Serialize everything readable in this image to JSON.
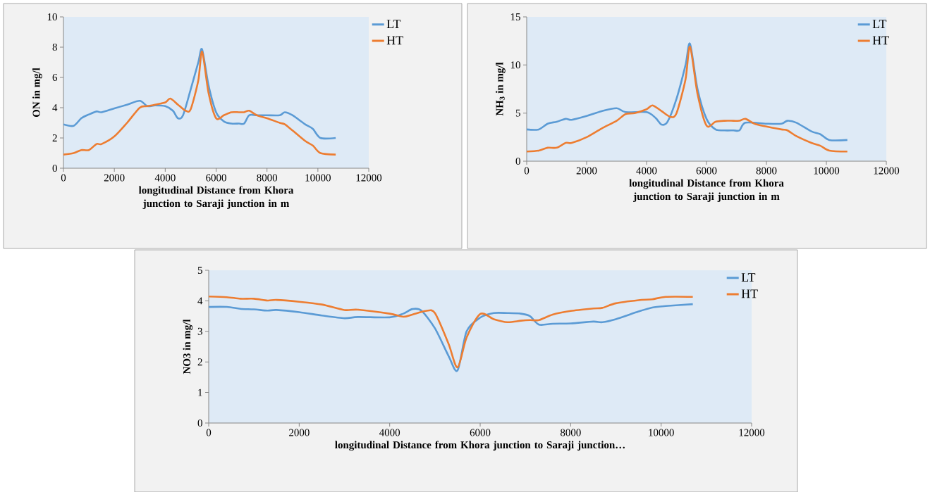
{
  "chart_data": [
    {
      "type": "line",
      "xlabel": "longitudinal Distance from Khora junction to Saraji junction in m",
      "ylabel": "ON in mg/l",
      "xlim": [
        0,
        12000
      ],
      "ylim": [
        0,
        10
      ],
      "xticks": [
        0,
        2000,
        4000,
        6000,
        8000,
        10000,
        12000
      ],
      "yticks": [
        0,
        2,
        4,
        6,
        8,
        10
      ],
      "legend": "top right",
      "series": [
        {
          "name": "LT",
          "color": "#5b9bd5",
          "x": [
            0,
            400,
            700,
            1000,
            1300,
            1500,
            2000,
            2500,
            3000,
            3300,
            3600,
            4000,
            4300,
            4500,
            4700,
            5000,
            5300,
            5450,
            5700,
            6000,
            6300,
            6600,
            6900,
            7100,
            7300,
            7600,
            8000,
            8500,
            8700,
            9000,
            9500,
            9800,
            10100,
            10700
          ],
          "values": [
            2.9,
            2.8,
            3.3,
            3.55,
            3.75,
            3.7,
            3.95,
            4.2,
            4.45,
            4.1,
            4.15,
            4.1,
            3.8,
            3.3,
            3.5,
            5.2,
            7.0,
            7.85,
            5.5,
            3.7,
            3.1,
            2.95,
            2.95,
            2.95,
            3.5,
            3.5,
            3.5,
            3.5,
            3.7,
            3.5,
            2.9,
            2.6,
            2.0,
            2.0
          ]
        },
        {
          "name": "HT",
          "color": "#ed7d31",
          "x": [
            0,
            400,
            700,
            1000,
            1300,
            1500,
            2000,
            2500,
            3000,
            3300,
            3600,
            4000,
            4200,
            4500,
            4800,
            5000,
            5300,
            5450,
            5700,
            6000,
            6300,
            6600,
            6900,
            7100,
            7300,
            7600,
            8000,
            8500,
            8700,
            9000,
            9500,
            9800,
            10100,
            10700
          ],
          "values": [
            0.9,
            1.0,
            1.2,
            1.2,
            1.6,
            1.6,
            2.1,
            3.0,
            4.0,
            4.1,
            4.2,
            4.35,
            4.6,
            4.2,
            3.8,
            3.9,
            5.8,
            7.7,
            5.0,
            3.3,
            3.5,
            3.7,
            3.7,
            3.7,
            3.8,
            3.5,
            3.3,
            3.0,
            2.9,
            2.5,
            1.8,
            1.5,
            1.0,
            0.9
          ]
        }
      ]
    },
    {
      "type": "line",
      "xlabel": "longitudinal Distance from Khora junction to Saraji junction in m",
      "ylabel": "NH$_{3}$ in mg/l",
      "xlim": [
        0,
        12000
      ],
      "ylim": [
        0,
        15
      ],
      "xticks": [
        0,
        2000,
        4000,
        6000,
        8000,
        10000,
        12000
      ],
      "yticks": [
        0,
        5,
        10,
        15
      ],
      "legend": "top right",
      "series": [
        {
          "name": "LT",
          "color": "#5b9bd5",
          "x": [
            0,
            400,
            700,
            1000,
            1300,
            1500,
            2000,
            2500,
            3000,
            3300,
            4000,
            4300,
            4500,
            4700,
            5000,
            5300,
            5450,
            5700,
            6000,
            6300,
            6600,
            6900,
            7100,
            7300,
            8000,
            8500,
            8700,
            9000,
            9500,
            9800,
            10100,
            10700
          ],
          "values": [
            3.3,
            3.3,
            3.9,
            4.1,
            4.4,
            4.3,
            4.7,
            5.2,
            5.5,
            5.1,
            5.1,
            4.5,
            3.8,
            4.1,
            6.5,
            10.0,
            12.2,
            7.5,
            4.4,
            3.3,
            3.2,
            3.2,
            3.2,
            4.0,
            3.9,
            3.9,
            4.2,
            4.0,
            3.1,
            2.8,
            2.2,
            2.2
          ]
        },
        {
          "name": "HT",
          "color": "#ed7d31",
          "x": [
            0,
            400,
            700,
            1000,
            1300,
            1500,
            2000,
            2500,
            3000,
            3300,
            3600,
            4000,
            4200,
            4500,
            4800,
            5000,
            5300,
            5450,
            5700,
            6000,
            6300,
            6600,
            6900,
            7100,
            7300,
            7600,
            8000,
            8500,
            8700,
            9000,
            9500,
            9800,
            10100,
            10700
          ],
          "values": [
            1.0,
            1.1,
            1.4,
            1.4,
            1.9,
            1.9,
            2.5,
            3.4,
            4.2,
            4.9,
            5.0,
            5.4,
            5.8,
            5.2,
            4.6,
            5.0,
            8.5,
            11.9,
            7.0,
            3.7,
            4.1,
            4.2,
            4.2,
            4.2,
            4.4,
            3.9,
            3.6,
            3.3,
            3.2,
            2.6,
            1.9,
            1.6,
            1.1,
            1.0
          ]
        }
      ]
    },
    {
      "type": "line",
      "xlabel": "longitudinal Distance from Khora junction to Saraji junction…",
      "ylabel": "NO3 in mg/l",
      "xlim": [
        0,
        12000
      ],
      "ylim": [
        0,
        5
      ],
      "xticks": [
        0,
        2000,
        4000,
        6000,
        8000,
        10000,
        12000
      ],
      "yticks": [
        0,
        1,
        2,
        3,
        4,
        5
      ],
      "legend": "top right",
      "series": [
        {
          "name": "LT",
          "color": "#5b9bd5",
          "x": [
            0,
            400,
            700,
            1000,
            1300,
            1500,
            2000,
            2500,
            3000,
            3300,
            4000,
            4300,
            4500,
            4700,
            5000,
            5300,
            5500,
            5700,
            6000,
            6300,
            6600,
            6900,
            7100,
            7300,
            7600,
            8000,
            8500,
            8700,
            9000,
            9500,
            9800,
            10100,
            10700
          ],
          "values": [
            3.8,
            3.8,
            3.74,
            3.72,
            3.68,
            3.7,
            3.63,
            3.52,
            3.43,
            3.47,
            3.46,
            3.58,
            3.73,
            3.68,
            3.1,
            2.2,
            1.72,
            3.0,
            3.45,
            3.6,
            3.6,
            3.58,
            3.5,
            3.22,
            3.25,
            3.26,
            3.32,
            3.3,
            3.4,
            3.65,
            3.78,
            3.83,
            3.89
          ]
        },
        {
          "name": "HT",
          "color": "#ed7d31",
          "x": [
            0,
            400,
            700,
            1000,
            1300,
            1500,
            2000,
            2500,
            3000,
            3300,
            4000,
            4300,
            4500,
            4800,
            5000,
            5300,
            5500,
            5700,
            6000,
            6300,
            6600,
            6900,
            7100,
            7300,
            7600,
            8000,
            8500,
            8700,
            9000,
            9500,
            9800,
            10100,
            10700
          ],
          "values": [
            4.14,
            4.12,
            4.07,
            4.07,
            4.01,
            4.03,
            3.97,
            3.88,
            3.7,
            3.71,
            3.58,
            3.48,
            3.55,
            3.67,
            3.6,
            2.6,
            1.82,
            2.8,
            3.57,
            3.4,
            3.3,
            3.35,
            3.37,
            3.37,
            3.55,
            3.67,
            3.75,
            3.77,
            3.92,
            4.02,
            4.05,
            4.13,
            4.13
          ]
        }
      ]
    }
  ]
}
